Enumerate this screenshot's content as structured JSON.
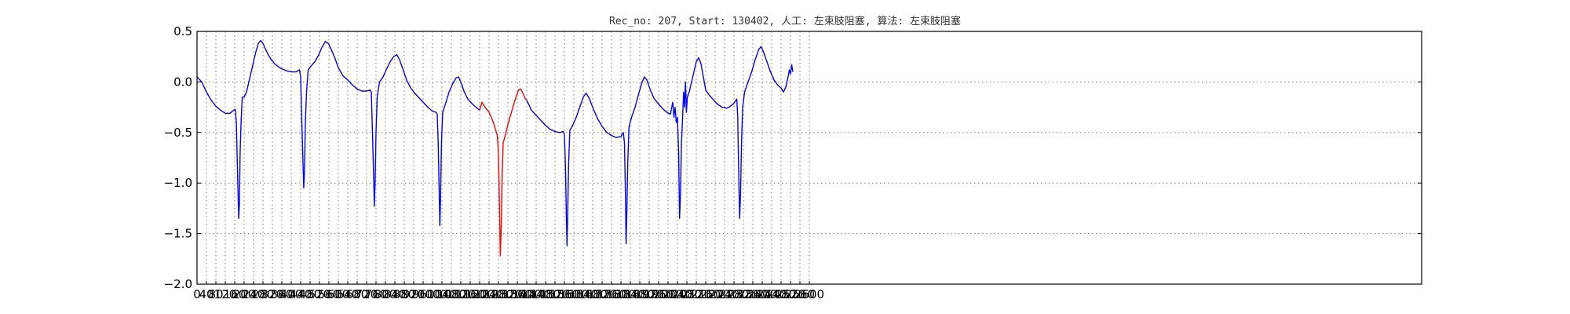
{
  "chart_data": {
    "type": "line",
    "title": "Rec_no: 207, Start: 130402, 人工: 左束肢阻塞, 算法: 左束肢阻塞",
    "xlabel": "",
    "ylabel": "",
    "xlim": [
      0,
      5200
    ],
    "ylim": [
      -2.0,
      0.5
    ],
    "grid": true,
    "xticks": [
      0,
      40,
      80,
      120,
      160,
      200,
      240,
      280,
      320,
      360,
      400,
      440,
      480,
      520,
      560,
      600,
      640,
      680,
      720,
      760,
      800,
      840,
      880,
      920,
      960,
      1000,
      1040,
      1080,
      1120,
      1160,
      1200,
      1240,
      1280,
      1320,
      1360,
      1400,
      1440,
      1480,
      1520,
      1560,
      1600,
      1640,
      1680,
      1720,
      1760,
      1800,
      1840,
      1880,
      1920,
      1960,
      2000,
      2040,
      2080,
      2120,
      2160,
      2200,
      2240,
      2280,
      2320,
      2360,
      2400,
      2440,
      2480,
      2520,
      2560,
      2600
    ],
    "xtick_labels": [
      "0",
      "40",
      "80",
      "120",
      "160",
      "200",
      "240",
      "280",
      "320",
      "360",
      "400",
      "440",
      "480",
      "520",
      "560",
      "600",
      "640",
      "680",
      "720",
      "760",
      "800",
      "840",
      "880",
      "920",
      "960",
      "1000",
      "1040",
      "1080",
      "1120",
      "1160",
      "1200",
      "1240",
      "1280",
      "1320",
      "1360",
      "1400",
      "1440",
      "1480",
      "1520",
      "1560",
      "1600",
      "1640",
      "1680",
      "1720",
      "1760",
      "1800",
      "1840",
      "1880",
      "1920",
      "1960",
      "2000",
      "2040",
      "2080",
      "2120",
      "2160",
      "2200",
      "2240",
      "2280",
      "2320",
      "2360",
      "2400",
      "2440",
      "2480",
      "2520",
      "2560",
      "2600"
    ],
    "yticks": [
      -2.0,
      -1.5,
      -1.0,
      -0.5,
      0.0,
      0.5
    ],
    "ytick_labels": [
      "−2.0",
      "−1.5",
      "−1.0",
      "−0.5",
      "0.0",
      "0.5"
    ],
    "series": [
      {
        "color": "#0000ff",
        "segments": [
          [
            [
              0,
              0.05
            ],
            [
              20,
              0.0
            ],
            [
              40,
              -0.1
            ],
            [
              60,
              -0.18
            ],
            [
              80,
              -0.24
            ],
            [
              100,
              -0.28
            ],
            [
              120,
              -0.31
            ],
            [
              140,
              -0.31
            ],
            [
              155,
              -0.28
            ],
            [
              162,
              -0.27
            ],
            [
              167,
              -0.4
            ],
            [
              172,
              -0.9
            ],
            [
              177,
              -1.35
            ],
            [
              180,
              -1.2
            ],
            [
              183,
              -0.7
            ],
            [
              187,
              -0.4
            ],
            [
              192,
              -0.15
            ],
            [
              200,
              -0.15
            ],
            [
              210,
              -0.1
            ],
            [
              220,
              0.0
            ],
            [
              230,
              0.1
            ],
            [
              240,
              0.2
            ],
            [
              250,
              0.3
            ],
            [
              260,
              0.38
            ],
            [
              270,
              0.41
            ],
            [
              280,
              0.38
            ],
            [
              290,
              0.33
            ],
            [
              300,
              0.28
            ],
            [
              315,
              0.22
            ],
            [
              330,
              0.18
            ],
            [
              345,
              0.15
            ],
            [
              360,
              0.13
            ],
            [
              380,
              0.11
            ],
            [
              400,
              0.1
            ],
            [
              420,
              0.1
            ],
            [
              435,
              0.12
            ],
            [
              440,
              0.05
            ],
            [
              445,
              -0.4
            ],
            [
              450,
              -0.8
            ],
            [
              453,
              -1.05
            ],
            [
              456,
              -0.9
            ],
            [
              460,
              -0.4
            ],
            [
              465,
              -0.1
            ],
            [
              472,
              0.12
            ],
            [
              485,
              0.16
            ],
            [
              500,
              0.2
            ],
            [
              515,
              0.26
            ],
            [
              530,
              0.34
            ],
            [
              545,
              0.4
            ],
            [
              558,
              0.38
            ],
            [
              570,
              0.32
            ],
            [
              585,
              0.24
            ],
            [
              600,
              0.14
            ],
            [
              620,
              0.06
            ],
            [
              640,
              0.02
            ],
            [
              660,
              -0.03
            ],
            [
              680,
              -0.07
            ],
            [
              700,
              -0.09
            ],
            [
              720,
              -0.09
            ],
            [
              735,
              -0.08
            ],
            [
              740,
              -0.1
            ],
            [
              745,
              -0.5
            ],
            [
              750,
              -0.95
            ],
            [
              753,
              -1.23
            ],
            [
              756,
              -1.0
            ],
            [
              760,
              -0.5
            ],
            [
              765,
              -0.15
            ],
            [
              775,
              0.0
            ],
            [
              790,
              0.05
            ],
            [
              805,
              0.13
            ],
            [
              820,
              0.2
            ],
            [
              835,
              0.25
            ],
            [
              848,
              0.27
            ],
            [
              860,
              0.22
            ],
            [
              875,
              0.12
            ],
            [
              890,
              0.02
            ],
            [
              905,
              -0.05
            ],
            [
              920,
              -0.1
            ],
            [
              940,
              -0.15
            ],
            [
              960,
              -0.2
            ],
            [
              980,
              -0.25
            ],
            [
              1000,
              -0.29
            ],
            [
              1015,
              -0.3
            ],
            [
              1020,
              -0.32
            ],
            [
              1024,
              -0.6
            ],
            [
              1028,
              -1.05
            ],
            [
              1031,
              -1.42
            ],
            [
              1034,
              -1.15
            ],
            [
              1038,
              -0.6
            ],
            [
              1043,
              -0.3
            ],
            [
              1050,
              -0.25
            ],
            [
              1060,
              -0.18
            ],
            [
              1070,
              -0.1
            ],
            [
              1085,
              -0.02
            ],
            [
              1100,
              0.04
            ],
            [
              1110,
              0.05
            ],
            [
              1120,
              0.0
            ],
            [
              1135,
              -0.1
            ],
            [
              1150,
              -0.17
            ],
            [
              1170,
              -0.22
            ],
            [
              1185,
              -0.25
            ],
            [
              1200,
              -0.28
            ]
          ],
          [
            [
              1400,
              -0.18
            ],
            [
              1420,
              -0.28
            ],
            [
              1440,
              -0.33
            ],
            [
              1460,
              -0.38
            ],
            [
              1480,
              -0.43
            ],
            [
              1500,
              -0.47
            ],
            [
              1520,
              -0.49
            ],
            [
              1540,
              -0.5
            ],
            [
              1555,
              -0.49
            ],
            [
              1560,
              -0.52
            ],
            [
              1564,
              -0.8
            ],
            [
              1568,
              -1.3
            ],
            [
              1571,
              -1.62
            ],
            [
              1574,
              -1.3
            ],
            [
              1578,
              -0.8
            ],
            [
              1583,
              -0.48
            ],
            [
              1595,
              -0.43
            ],
            [
              1610,
              -0.35
            ],
            [
              1625,
              -0.25
            ],
            [
              1640,
              -0.15
            ],
            [
              1652,
              -0.11
            ],
            [
              1665,
              -0.16
            ],
            [
              1680,
              -0.25
            ],
            [
              1700,
              -0.36
            ],
            [
              1720,
              -0.44
            ],
            [
              1740,
              -0.5
            ],
            [
              1760,
              -0.53
            ],
            [
              1780,
              -0.55
            ],
            [
              1800,
              -0.54
            ],
            [
              1810,
              -0.5
            ],
            [
              1815,
              -0.6
            ],
            [
              1819,
              -1.1
            ],
            [
              1822,
              -1.6
            ],
            [
              1825,
              -1.3
            ],
            [
              1829,
              -0.8
            ],
            [
              1834,
              -0.45
            ],
            [
              1845,
              -0.35
            ],
            [
              1860,
              -0.25
            ],
            [
              1875,
              -0.12
            ],
            [
              1890,
              0.0
            ],
            [
              1900,
              0.05
            ],
            [
              1910,
              0.02
            ],
            [
              1925,
              -0.08
            ],
            [
              1940,
              -0.16
            ],
            [
              1960,
              -0.22
            ],
            [
              1980,
              -0.27
            ],
            [
              1995,
              -0.3
            ],
            [
              2010,
              -0.32
            ],
            [
              2020,
              -0.2
            ],
            [
              2025,
              -0.35
            ],
            [
              2030,
              -0.25
            ],
            [
              2035,
              -0.4
            ],
            [
              2040,
              -0.35
            ],
            [
              2045,
              -0.7
            ],
            [
              2049,
              -1.35
            ],
            [
              2053,
              -1.1
            ],
            [
              2057,
              -0.6
            ],
            [
              2062,
              -0.35
            ],
            [
              2066,
              -0.1
            ],
            [
              2070,
              -0.25
            ],
            [
              2074,
              0.0
            ],
            [
              2078,
              -0.3
            ],
            [
              2082,
              -0.15
            ],
            [
              2090,
              -0.1
            ],
            [
              2100,
              0.0
            ],
            [
              2110,
              0.1
            ],
            [
              2120,
              0.2
            ],
            [
              2130,
              0.24
            ],
            [
              2140,
              0.18
            ],
            [
              2150,
              0.05
            ],
            [
              2160,
              -0.08
            ],
            [
              2175,
              -0.13
            ],
            [
              2190,
              -0.17
            ],
            [
              2210,
              -0.22
            ],
            [
              2230,
              -0.25
            ],
            [
              2250,
              -0.26
            ],
            [
              2265,
              -0.24
            ],
            [
              2280,
              -0.21
            ],
            [
              2292,
              -0.17
            ],
            [
              2296,
              -0.35
            ],
            [
              2300,
              -0.9
            ],
            [
              2304,
              -1.35
            ],
            [
              2308,
              -1.1
            ],
            [
              2312,
              -0.6
            ],
            [
              2317,
              -0.25
            ],
            [
              2325,
              -0.1
            ],
            [
              2340,
              0.0
            ],
            [
              2355,
              0.1
            ],
            [
              2370,
              0.22
            ],
            [
              2385,
              0.32
            ],
            [
              2395,
              0.35
            ],
            [
              2405,
              0.3
            ],
            [
              2420,
              0.2
            ],
            [
              2435,
              0.1
            ],
            [
              2450,
              0.02
            ],
            [
              2465,
              -0.03
            ],
            [
              2480,
              -0.06
            ],
            [
              2490,
              -0.1
            ],
            [
              2500,
              -0.05
            ],
            [
              2510,
              0.05
            ],
            [
              2515,
              0.12
            ],
            [
              2520,
              0.08
            ],
            [
              2525,
              0.17
            ],
            [
              2530,
              0.1
            ]
          ]
        ]
      },
      {
        "color": "#ff0000",
        "segments": [
          [
            [
              1200,
              -0.28
            ],
            [
              1210,
              -0.2
            ],
            [
              1220,
              -0.24
            ],
            [
              1240,
              -0.3
            ],
            [
              1255,
              -0.38
            ],
            [
              1265,
              -0.45
            ],
            [
              1275,
              -0.53
            ],
            [
              1280,
              -0.7
            ],
            [
              1284,
              -1.2
            ],
            [
              1288,
              -1.72
            ],
            [
              1292,
              -1.4
            ],
            [
              1296,
              -0.9
            ],
            [
              1300,
              -0.6
            ],
            [
              1310,
              -0.52
            ],
            [
              1320,
              -0.42
            ],
            [
              1335,
              -0.3
            ],
            [
              1350,
              -0.18
            ],
            [
              1365,
              -0.08
            ],
            [
              1375,
              -0.07
            ],
            [
              1385,
              -0.12
            ],
            [
              1395,
              -0.17
            ],
            [
              1400,
              -0.18
            ]
          ]
        ]
      }
    ]
  }
}
